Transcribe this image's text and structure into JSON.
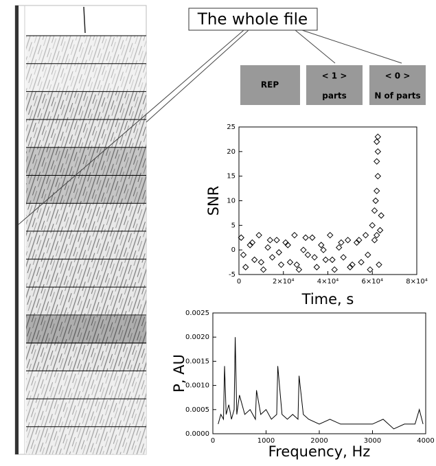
{
  "callout": "The whole file",
  "buttons": [
    {
      "label": "REP"
    },
    {
      "label": "< 1 >",
      "caption": "parts"
    },
    {
      "label": "< 0 >",
      "caption": "N of parts"
    }
  ],
  "chart_data": [
    {
      "type": "scatter",
      "x_label": "Time, s",
      "y_label": "SNR",
      "color": "#000000",
      "x": [
        1000,
        3000,
        5000,
        7000,
        9000,
        11000,
        13000,
        15000,
        17000,
        19000,
        21000,
        23000,
        25000,
        27000,
        29000,
        31000,
        33000,
        35000,
        37000,
        39000,
        41000,
        43000,
        45000,
        47000,
        49000,
        51000,
        53000,
        55000,
        57000,
        59000,
        61000,
        63000,
        2000,
        6000,
        10000,
        14000,
        18000,
        22000,
        26000,
        30000,
        34000,
        38000,
        42000,
        46000,
        50000,
        54000,
        58000,
        62000,
        60000,
        61000,
        61500,
        62000,
        62500,
        62000,
        62500,
        62000,
        62500,
        64000,
        63500
      ],
      "values": [
        2.5,
        -3.5,
        1,
        -2,
        3,
        -4,
        0.5,
        -1.5,
        2,
        -3,
        1.5,
        -2.5,
        3,
        -4,
        0,
        -1,
        2.5,
        -3.5,
        1,
        -2,
        3,
        -4,
        0.5,
        -1.5,
        2,
        -3,
        1.5,
        -2.5,
        3,
        -4,
        2,
        -3,
        -1,
        1.5,
        -2.5,
        2,
        -0.5,
        1,
        -3,
        2.5,
        -1.5,
        0,
        -2,
        1.5,
        -3.5,
        2,
        -1,
        3,
        5,
        8,
        10,
        12,
        15,
        18,
        20,
        22,
        23,
        7,
        4
      ],
      "xlim": [
        0,
        80000
      ],
      "xticks": [
        0,
        {
          "value": 20000,
          "label": "2×10⁴"
        },
        {
          "value": 40000,
          "label": "4×10⁴"
        },
        {
          "value": 60000,
          "label": "6×10⁴"
        },
        {
          "value": 80000,
          "label": "8×10⁴"
        }
      ],
      "ylim": [
        -5,
        25
      ],
      "yticks": [
        -5,
        0,
        5,
        10,
        15,
        20,
        25
      ]
    },
    {
      "type": "line",
      "x_label": "Frequency, Hz",
      "y_label": "P, AU",
      "color": "#000000",
      "x": [
        100,
        150,
        200,
        220,
        250,
        300,
        350,
        400,
        420,
        450,
        500,
        600,
        700,
        800,
        820,
        900,
        1000,
        1100,
        1200,
        1220,
        1300,
        1400,
        1500,
        1600,
        1620,
        1700,
        1800,
        2000,
        2200,
        2400,
        2600,
        2800,
        3000,
        3200,
        3400,
        3600,
        3800,
        3880,
        3950
      ],
      "values": [
        0.0002,
        0.0004,
        0.0003,
        0.0014,
        0.0004,
        0.0006,
        0.0003,
        0.0005,
        0.002,
        0.0004,
        0.0008,
        0.0004,
        0.0005,
        0.0003,
        0.0009,
        0.0004,
        0.0005,
        0.0003,
        0.0004,
        0.0014,
        0.0004,
        0.0003,
        0.0004,
        0.0003,
        0.0012,
        0.0004,
        0.0003,
        0.0002,
        0.0003,
        0.0002,
        0.0002,
        0.0002,
        0.0002,
        0.0003,
        0.0001,
        0.0002,
        0.0002,
        0.0005,
        0.0002
      ],
      "xlim": [
        0,
        4000
      ],
      "xticks": [
        0,
        1000,
        2000,
        3000,
        4000
      ],
      "ylim": [
        0,
        0.0025
      ],
      "yticks": [
        {
          "value": 0,
          "label": "0.0000"
        },
        {
          "value": 0.0005,
          "label": "0.0005"
        },
        {
          "value": 0.001,
          "label": "0.0010"
        },
        {
          "value": 0.0015,
          "label": "0.0015"
        },
        {
          "value": 0.002,
          "label": "0.0020"
        },
        {
          "value": 0.0025,
          "label": "0.0025"
        }
      ]
    }
  ]
}
